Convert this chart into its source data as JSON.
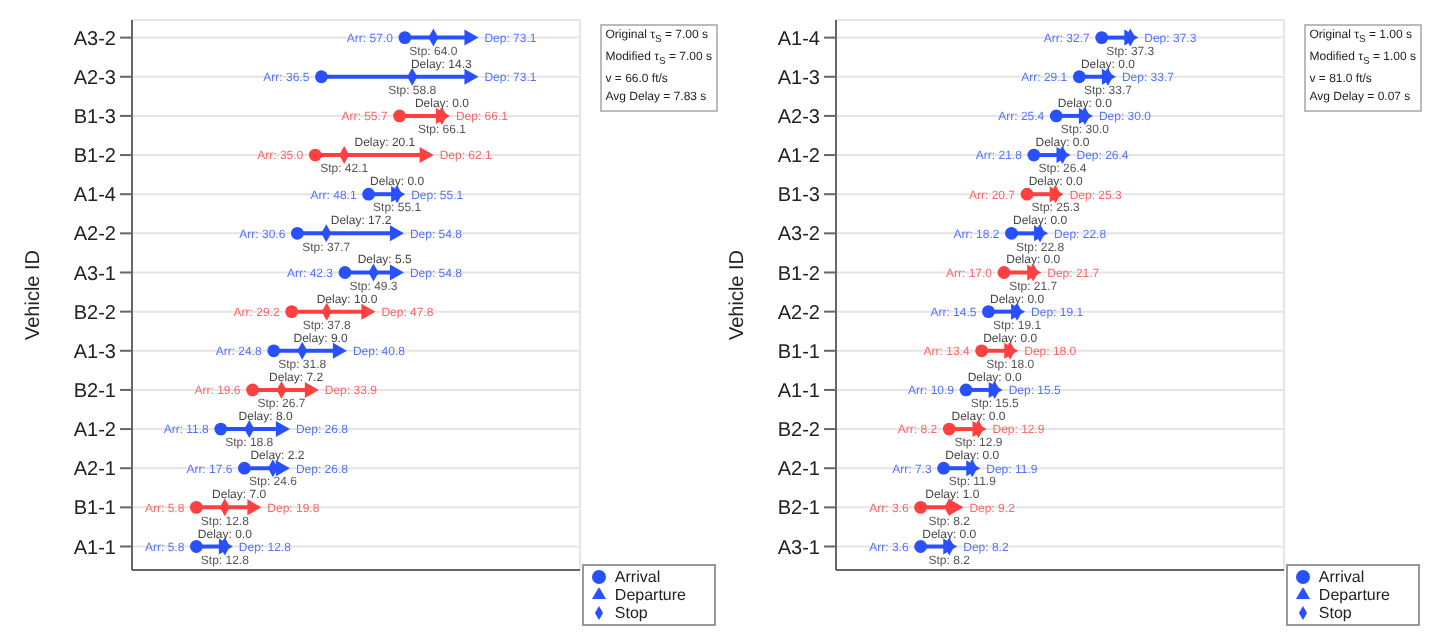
{
  "chart_data": [
    {
      "type": "scatter",
      "orientation": "horizontal",
      "ylabel": "Vehicle ID",
      "xlim": [
        -10,
        100
      ],
      "tick_labels": "y",
      "grid": true,
      "legend": "bottom right",
      "categories": [
        "A3-2",
        "A2-3",
        "B1-3",
        "B1-2",
        "A1-4",
        "A2-2",
        "A3-1",
        "B2-2",
        "A1-3",
        "B2-1",
        "A1-2",
        "A2-1",
        "B1-1",
        "A1-1"
      ],
      "series": [
        {
          "name": "Arrival",
          "marker": "circle",
          "color": "#2850ff",
          "colors": [
            "#2850ff",
            "#2850ff",
            "#ff4040",
            "#ff4040",
            "#2850ff",
            "#2850ff",
            "#2850ff",
            "#ff4040",
            "#2850ff",
            "#ff4040",
            "#2850ff",
            "#2850ff",
            "#ff4040",
            "#2850ff"
          ],
          "values": [
            57.0,
            36.5,
            55.7,
            35.0,
            48.1,
            30.6,
            42.3,
            29.2,
            24.8,
            19.6,
            11.8,
            17.6,
            5.8,
            5.8
          ],
          "value_labels": [
            "Arr: 57.0",
            "Arr: 36.5",
            "Arr: 55.7",
            "Arr: 35.0",
            "Arr: 48.1",
            "Arr: 30.6",
            "Arr: 42.3",
            "Arr: 29.2",
            "Arr: 24.8",
            "Arr: 19.6",
            "Arr: 11.8",
            "Arr: 17.6",
            "Arr: 5.8",
            "Arr: 5.8"
          ]
        },
        {
          "name": "Stop",
          "marker": "diamond",
          "color": "#2850ff",
          "colors": [
            "#2850ff",
            "#2850ff",
            "#ff4040",
            "#ff4040",
            "#2850ff",
            "#2850ff",
            "#2850ff",
            "#ff4040",
            "#2850ff",
            "#ff4040",
            "#2850ff",
            "#2850ff",
            "#ff4040",
            "#2850ff"
          ],
          "values": [
            64.0,
            58.8,
            66.1,
            42.1,
            55.1,
            37.7,
            49.3,
            37.8,
            31.8,
            26.7,
            18.8,
            24.6,
            12.8,
            12.8
          ],
          "value_labels": [
            "Stp: 64.0",
            "Stp: 58.8",
            "Stp: 66.1",
            "Stp: 42.1",
            "Stp: 55.1",
            "Stp: 37.7",
            "Stp: 49.3",
            "Stp: 37.8",
            "Stp: 31.8",
            "Stp: 26.7",
            "Stp: 18.8",
            "Stp: 24.6",
            "Stp: 12.8",
            "Stp: 12.8"
          ]
        },
        {
          "name": "Departure",
          "marker": "triangle",
          "color": "#2850ff",
          "colors": [
            "#2850ff",
            "#2850ff",
            "#ff4040",
            "#ff4040",
            "#2850ff",
            "#2850ff",
            "#2850ff",
            "#ff4040",
            "#2850ff",
            "#ff4040",
            "#2850ff",
            "#2850ff",
            "#ff4040",
            "#2850ff"
          ],
          "values": [
            73.1,
            73.1,
            66.1,
            62.1,
            55.1,
            54.8,
            54.8,
            47.8,
            40.8,
            33.9,
            26.8,
            26.8,
            19.8,
            12.8
          ],
          "value_labels": [
            "Dep: 73.1",
            "Dep: 73.1",
            "Dep: 66.1",
            "Dep: 62.1",
            "Dep: 55.1",
            "Dep: 54.8",
            "Dep: 54.8",
            "Dep: 47.8",
            "Dep: 40.8",
            "Dep: 33.9",
            "Dep: 26.8",
            "Dep: 26.8",
            "Dep: 19.8",
            "Dep: 12.8"
          ]
        }
      ],
      "annotations": [
        "Original τ$_{S}$ = 7.00 s",
        "Modified τ$_{S}$ = 7.00 s",
        "v = 66.0 ft/s",
        "Avg Delay = 7.83 s",
        "Delay: 14.3",
        "Delay: 0.0",
        "Delay: 20.1",
        "Delay: 0.0",
        "Delay: 17.2",
        "Delay: 5.5",
        "Delay: 10.0",
        "Delay: 9.0",
        "Delay: 7.2",
        "Delay: 8.0",
        "Delay: 2.2",
        "Delay: 7.0",
        "Delay: 0.0"
      ]
    },
    {
      "type": "scatter",
      "orientation": "horizontal",
      "ylabel": "Vehicle ID",
      "xlim": [
        -10,
        62
      ],
      "tick_labels": "y",
      "grid": true,
      "legend": "bottom right",
      "categories": [
        "A1-4",
        "A1-3",
        "A2-3",
        "A1-2",
        "B1-3",
        "A3-2",
        "B1-2",
        "A2-2",
        "B1-1",
        "A1-1",
        "B2-2",
        "A2-1",
        "B2-1",
        "A3-1"
      ],
      "series": [
        {
          "name": "Arrival",
          "marker": "circle",
          "color": "#2850ff",
          "colors": [
            "#2850ff",
            "#2850ff",
            "#2850ff",
            "#2850ff",
            "#ff4040",
            "#2850ff",
            "#ff4040",
            "#2850ff",
            "#ff4040",
            "#2850ff",
            "#ff4040",
            "#2850ff",
            "#ff4040",
            "#2850ff"
          ],
          "values": [
            32.7,
            29.1,
            25.4,
            21.8,
            20.7,
            18.2,
            17.0,
            14.5,
            13.4,
            10.9,
            8.2,
            7.3,
            3.6,
            3.6
          ],
          "value_labels": [
            "Arr: 32.7",
            "Arr: 29.1",
            "Arr: 25.4",
            "Arr: 21.8",
            "Arr: 20.7",
            "Arr: 18.2",
            "Arr: 17.0",
            "Arr: 14.5",
            "Arr: 13.4",
            "Arr: 10.9",
            "Arr: 8.2",
            "Arr: 7.3",
            "Arr: 3.6",
            "Arr: 3.6"
          ]
        },
        {
          "name": "Stop",
          "marker": "diamond",
          "color": "#2850ff",
          "colors": [
            "#2850ff",
            "#2850ff",
            "#2850ff",
            "#2850ff",
            "#ff4040",
            "#2850ff",
            "#ff4040",
            "#2850ff",
            "#ff4040",
            "#2850ff",
            "#ff4040",
            "#2850ff",
            "#ff4040",
            "#2850ff"
          ],
          "values": [
            37.3,
            33.7,
            30.0,
            26.4,
            25.3,
            22.8,
            21.7,
            19.1,
            18.0,
            15.5,
            12.9,
            11.9,
            8.2,
            8.2
          ],
          "value_labels": [
            "Stp: 37.3",
            "Stp: 33.7",
            "Stp: 30.0",
            "Stp: 26.4",
            "Stp: 25.3",
            "Stp: 22.8",
            "Stp: 21.7",
            "Stp: 19.1",
            "Stp: 18.0",
            "Stp: 15.5",
            "Stp: 12.9",
            "Stp: 11.9",
            "Stp: 8.2",
            "Stp: 8.2"
          ]
        },
        {
          "name": "Departure",
          "marker": "triangle",
          "color": "#2850ff",
          "colors": [
            "#2850ff",
            "#2850ff",
            "#2850ff",
            "#2850ff",
            "#ff4040",
            "#2850ff",
            "#ff4040",
            "#2850ff",
            "#ff4040",
            "#2850ff",
            "#ff4040",
            "#2850ff",
            "#ff4040",
            "#2850ff"
          ],
          "values": [
            37.3,
            33.7,
            30.0,
            26.4,
            25.3,
            22.8,
            21.7,
            19.1,
            18.0,
            15.5,
            12.9,
            11.9,
            9.2,
            8.2
          ],
          "value_labels": [
            "Dep: 37.3",
            "Dep: 33.7",
            "Dep: 30.0",
            "Dep: 26.4",
            "Dep: 25.3",
            "Dep: 22.8",
            "Dep: 21.7",
            "Dep: 19.1",
            "Dep: 18.0",
            "Dep: 15.5",
            "Dep: 12.9",
            "Dep: 11.9",
            "Dep: 9.2",
            "Dep: 8.2"
          ]
        }
      ],
      "annotations": [
        "Original τ$_{S}$ = 1.00 s",
        "Modified τ$_{S}$ = 1.00 s",
        "v = 81.0 ft/s",
        "Avg Delay = 0.07 s",
        "Delay: 0.0",
        "Delay: 0.0",
        "Delay: 0.0",
        "Delay: 0.0",
        "Delay: 0.0",
        "Delay: 0.0",
        "Delay: 0.0",
        "Delay: 0.0",
        "Delay: 0.0",
        "Delay: 0.0",
        "Delay: 0.0",
        "Delay: 1.0",
        "Delay: 0.0"
      ]
    }
  ]
}
